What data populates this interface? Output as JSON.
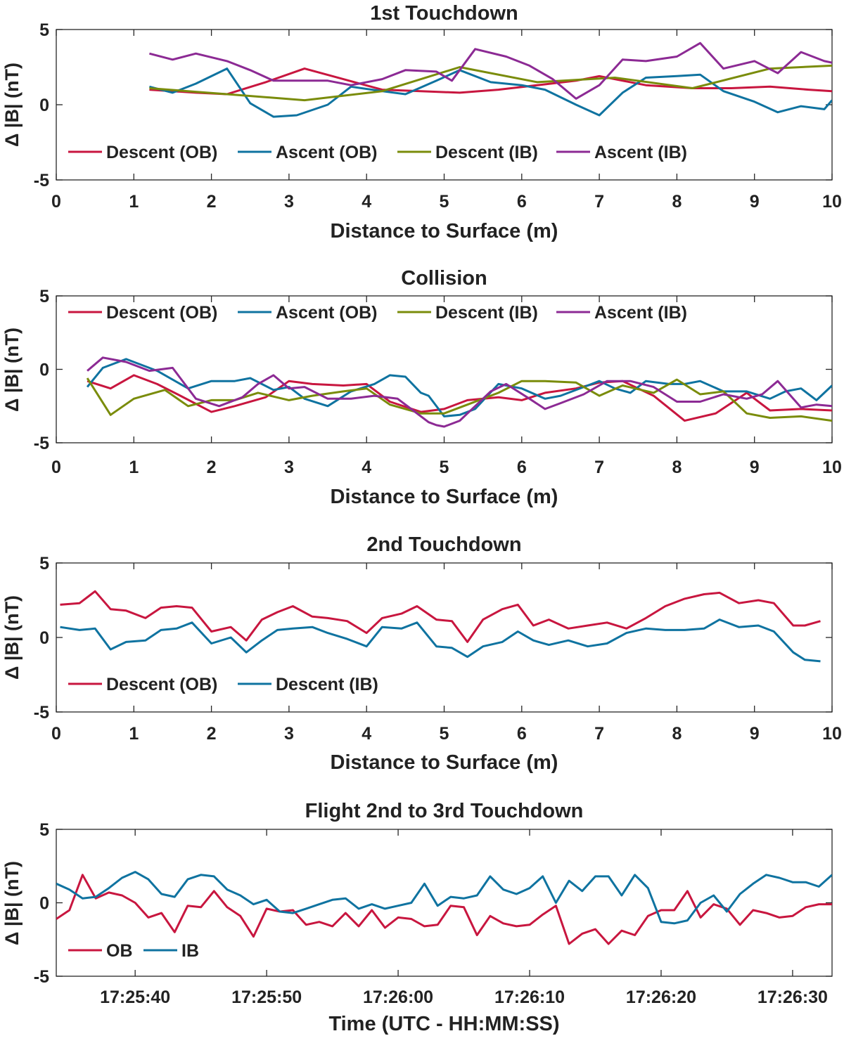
{
  "colors": {
    "red": "#c8163f",
    "blue": "#0f73a0",
    "olive": "#7a8c0b",
    "purple": "#8c2a94"
  },
  "chart_data": [
    {
      "type": "line",
      "title": "1st Touchdown",
      "xlabel": "Distance to Surface (m)",
      "ylabel": "Δ |B| (nT)",
      "xlim": [
        0,
        10
      ],
      "ylim": [
        -5,
        5
      ],
      "xticks": [
        0,
        1,
        2,
        3,
        4,
        5,
        6,
        7,
        8,
        9,
        10
      ],
      "yticks": [
        5,
        0,
        -5
      ],
      "legend_position": "bottom",
      "series": [
        {
          "name": "Descent (OB)",
          "color": "red",
          "x": [
            1.2,
            1.8,
            2.2,
            2.7,
            3.2,
            3.7,
            4.2,
            4.7,
            5.2,
            5.7,
            6.2,
            6.7,
            7.0,
            7.6,
            8.2,
            8.7,
            9.2,
            9.7,
            10
          ],
          "y": [
            1.0,
            0.8,
            0.7,
            1.5,
            2.4,
            1.7,
            1.0,
            0.9,
            0.8,
            1.0,
            1.3,
            1.6,
            1.9,
            1.3,
            1.1,
            1.1,
            1.2,
            1.0,
            0.9
          ]
        },
        {
          "name": "Ascent (OB)",
          "color": "blue",
          "x": [
            1.2,
            1.5,
            1.8,
            2.2,
            2.5,
            2.8,
            3.1,
            3.5,
            3.8,
            4.2,
            4.5,
            4.9,
            5.2,
            5.6,
            6.0,
            6.3,
            6.7,
            7.0,
            7.3,
            7.6,
            8.0,
            8.3,
            8.6,
            9.0,
            9.3,
            9.6,
            9.9,
            10
          ],
          "y": [
            1.2,
            0.8,
            1.4,
            2.4,
            0.1,
            -0.8,
            -0.7,
            0.0,
            1.2,
            0.9,
            0.7,
            1.6,
            2.3,
            1.5,
            1.3,
            1.0,
            0.0,
            -0.7,
            0.8,
            1.8,
            1.9,
            2.0,
            0.9,
            0.2,
            -0.5,
            -0.1,
            -0.3,
            0.3
          ]
        },
        {
          "name": "Descent (IB)",
          "color": "olive",
          "x": [
            1.2,
            2.2,
            3.2,
            4.2,
            5.2,
            6.2,
            7.2,
            8.2,
            9.2,
            10
          ],
          "y": [
            1.1,
            0.7,
            0.3,
            0.9,
            2.5,
            1.5,
            1.8,
            1.1,
            2.4,
            2.6
          ]
        },
        {
          "name": "Ascent (IB)",
          "color": "purple",
          "x": [
            1.2,
            1.5,
            1.8,
            2.2,
            2.5,
            2.8,
            3.1,
            3.5,
            3.8,
            4.2,
            4.5,
            4.9,
            5.1,
            5.4,
            5.8,
            6.1,
            6.4,
            6.7,
            7.0,
            7.3,
            7.6,
            8.0,
            8.3,
            8.6,
            9.0,
            9.3,
            9.6,
            9.9,
            10
          ],
          "y": [
            3.4,
            3.0,
            3.4,
            2.9,
            2.3,
            1.6,
            1.6,
            1.6,
            1.3,
            1.7,
            2.3,
            2.2,
            1.6,
            3.7,
            3.2,
            2.6,
            1.7,
            0.4,
            1.3,
            3.0,
            2.9,
            3.2,
            4.1,
            2.4,
            2.9,
            2.1,
            3.5,
            2.9,
            2.8
          ]
        }
      ]
    },
    {
      "type": "line",
      "title": "Collision",
      "xlabel": "Distance to Surface (m)",
      "ylabel": "Δ |B| (nT)",
      "xlim": [
        0,
        10
      ],
      "ylim": [
        -5,
        5
      ],
      "xticks": [
        0,
        1,
        2,
        3,
        4,
        5,
        6,
        7,
        8,
        9,
        10
      ],
      "yticks": [
        5,
        0,
        -5
      ],
      "legend_position": "top",
      "series": [
        {
          "name": "Descent (OB)",
          "color": "red",
          "x": [
            0.4,
            0.7,
            1.0,
            1.3,
            1.6,
            2.0,
            2.3,
            2.7,
            3.0,
            3.3,
            3.7,
            4.0,
            4.3,
            4.7,
            5.0,
            5.3,
            5.7,
            6.0,
            6.3,
            6.7,
            7.0,
            7.3,
            7.7,
            8.1,
            8.5,
            8.9,
            9.2,
            9.6,
            10
          ],
          "y": [
            -0.8,
            -1.3,
            -0.4,
            -1.0,
            -1.8,
            -2.9,
            -2.5,
            -1.9,
            -0.8,
            -1.0,
            -1.1,
            -1.0,
            -2.2,
            -2.9,
            -2.7,
            -2.1,
            -1.9,
            -2.1,
            -1.6,
            -1.3,
            -0.9,
            -0.8,
            -1.8,
            -3.5,
            -3.0,
            -1.6,
            -2.8,
            -2.7,
            -2.8
          ]
        },
        {
          "name": "Ascent (OB)",
          "color": "blue",
          "x": [
            0.4,
            0.6,
            0.9,
            1.3,
            1.7,
            2.0,
            2.3,
            2.5,
            2.8,
            3.0,
            3.2,
            3.5,
            3.8,
            4.1,
            4.3,
            4.5,
            4.7,
            4.8,
            5.0,
            5.2,
            5.4,
            5.7,
            6.0,
            6.3,
            6.5,
            6.8,
            7.0,
            7.2,
            7.4,
            7.6,
            7.9,
            8.1,
            8.3,
            8.6,
            8.9,
            9.2,
            9.4,
            9.6,
            9.8,
            10
          ],
          "y": [
            -1.2,
            0.1,
            0.7,
            -0.1,
            -1.3,
            -0.8,
            -0.8,
            -0.6,
            -1.4,
            -1.2,
            -2.0,
            -2.5,
            -1.5,
            -1.0,
            -0.4,
            -0.5,
            -1.6,
            -1.8,
            -3.2,
            -3.1,
            -2.7,
            -1.0,
            -1.3,
            -2.0,
            -1.8,
            -1.2,
            -0.8,
            -1.3,
            -1.6,
            -0.8,
            -1.0,
            -1.0,
            -0.8,
            -1.5,
            -1.5,
            -2.0,
            -1.5,
            -1.3,
            -2.1,
            -1.1
          ]
        },
        {
          "name": "Descent (IB)",
          "color": "olive",
          "x": [
            0.4,
            0.7,
            1.0,
            1.4,
            1.7,
            2.0,
            2.3,
            2.6,
            3.0,
            3.3,
            3.7,
            4.0,
            4.3,
            4.7,
            5.0,
            5.3,
            5.7,
            6.0,
            6.3,
            6.7,
            7.0,
            7.3,
            7.7,
            8.0,
            8.3,
            8.6,
            8.9,
            9.2,
            9.6,
            10
          ],
          "y": [
            -0.6,
            -3.1,
            -2.0,
            -1.4,
            -2.5,
            -2.1,
            -2.1,
            -1.6,
            -2.1,
            -1.8,
            -1.5,
            -1.3,
            -2.4,
            -3.0,
            -3.0,
            -2.4,
            -1.6,
            -0.8,
            -0.8,
            -0.9,
            -1.8,
            -1.1,
            -1.6,
            -0.7,
            -1.7,
            -1.5,
            -3.0,
            -3.3,
            -3.2,
            -3.5
          ]
        },
        {
          "name": "Ascent (IB)",
          "color": "purple",
          "x": [
            0.4,
            0.6,
            0.9,
            1.2,
            1.5,
            1.8,
            2.1,
            2.4,
            2.6,
            2.8,
            3.0,
            3.2,
            3.5,
            3.8,
            4.1,
            4.4,
            4.6,
            4.8,
            4.9,
            5.0,
            5.2,
            5.4,
            5.6,
            5.8,
            6.1,
            6.3,
            6.5,
            6.8,
            7.1,
            7.4,
            7.7,
            8.0,
            8.3,
            8.6,
            8.9,
            9.1,
            9.3,
            9.6,
            9.8,
            10
          ],
          "y": [
            -0.1,
            0.8,
            0.5,
            -0.1,
            0.1,
            -2.0,
            -2.5,
            -1.9,
            -1.0,
            -0.4,
            -1.3,
            -1.2,
            -2.0,
            -2.0,
            -1.8,
            -2.0,
            -2.8,
            -3.6,
            -3.8,
            -3.9,
            -3.5,
            -2.5,
            -1.5,
            -1.0,
            -2.0,
            -2.7,
            -2.3,
            -1.7,
            -0.8,
            -0.8,
            -1.2,
            -2.2,
            -2.2,
            -1.7,
            -2.0,
            -1.7,
            -0.8,
            -2.6,
            -2.4,
            -2.5
          ]
        }
      ]
    },
    {
      "type": "line",
      "title": "2nd Touchdown",
      "xlabel": "Distance to Surface (m)",
      "ylabel": "Δ |B| (nT)",
      "xlim": [
        0,
        10
      ],
      "ylim": [
        -5,
        5
      ],
      "xticks": [
        0,
        1,
        2,
        3,
        4,
        5,
        6,
        7,
        8,
        9,
        10
      ],
      "yticks": [
        5,
        0,
        -5
      ],
      "legend_position": "bottom",
      "series": [
        {
          "name": "Descent (OB)",
          "color": "red",
          "x": [
            0.05,
            0.3,
            0.5,
            0.7,
            0.9,
            1.15,
            1.35,
            1.55,
            1.75,
            2.0,
            2.25,
            2.45,
            2.65,
            2.85,
            3.05,
            3.3,
            3.5,
            3.75,
            4.0,
            4.2,
            4.45,
            4.65,
            4.9,
            5.1,
            5.3,
            5.5,
            5.75,
            5.95,
            6.15,
            6.35,
            6.6,
            6.85,
            7.1,
            7.35,
            7.6,
            7.85,
            8.1,
            8.35,
            8.55,
            8.8,
            9.05,
            9.25,
            9.5,
            9.65,
            9.85
          ],
          "y": [
            2.2,
            2.3,
            3.1,
            1.9,
            1.8,
            1.3,
            2.0,
            2.1,
            2.0,
            0.4,
            0.7,
            -0.2,
            1.2,
            1.7,
            2.1,
            1.4,
            1.3,
            1.1,
            0.3,
            1.3,
            1.6,
            2.1,
            1.2,
            1.1,
            -0.3,
            1.2,
            1.9,
            2.2,
            0.8,
            1.2,
            0.6,
            0.8,
            1.0,
            0.6,
            1.3,
            2.1,
            2.6,
            2.9,
            3.0,
            2.3,
            2.5,
            2.3,
            0.8,
            0.8,
            1.1
          ]
        },
        {
          "name": "Descent (IB)",
          "color": "blue",
          "x": [
            0.05,
            0.3,
            0.5,
            0.7,
            0.9,
            1.15,
            1.35,
            1.55,
            1.75,
            2.0,
            2.25,
            2.45,
            2.65,
            2.85,
            3.05,
            3.3,
            3.5,
            3.75,
            4.0,
            4.2,
            4.45,
            4.65,
            4.9,
            5.1,
            5.3,
            5.5,
            5.75,
            5.95,
            6.15,
            6.35,
            6.6,
            6.85,
            7.1,
            7.35,
            7.6,
            7.85,
            8.1,
            8.35,
            8.55,
            8.8,
            9.05,
            9.25,
            9.5,
            9.65,
            9.85
          ],
          "y": [
            0.7,
            0.5,
            0.6,
            -0.8,
            -0.3,
            -0.2,
            0.5,
            0.6,
            1.0,
            -0.4,
            0.0,
            -1.0,
            -0.2,
            0.5,
            0.6,
            0.7,
            0.3,
            -0.1,
            -0.6,
            0.7,
            0.6,
            1.0,
            -0.6,
            -0.7,
            -1.3,
            -0.6,
            -0.3,
            0.4,
            -0.2,
            -0.5,
            -0.2,
            -0.6,
            -0.4,
            0.3,
            0.6,
            0.5,
            0.5,
            0.6,
            1.2,
            0.7,
            0.8,
            0.4,
            -1.0,
            -1.5,
            -1.6
          ]
        }
      ]
    },
    {
      "type": "line",
      "title": "Flight 2nd to 3rd Touchdown",
      "xlabel": "Time (UTC - HH:MM:SS)",
      "ylabel": "Δ |B| (nT)",
      "x_units": "seconds after 17:25:00",
      "xlim": [
        34,
        93
      ],
      "ylim": [
        -5,
        5
      ],
      "xticks": [
        40,
        50,
        60,
        70,
        80,
        90
      ],
      "xtick_labels": [
        "17:25:40",
        "17:25:50",
        "17:26:00",
        "17:26:10",
        "17:26:20",
        "17:26:30"
      ],
      "yticks": [
        5,
        0,
        -5
      ],
      "legend_position": "bottom",
      "series": [
        {
          "name": "OB",
          "color": "red",
          "x": [
            34,
            35,
            36,
            37,
            38,
            39,
            40,
            41,
            42,
            43,
            44,
            45,
            46,
            47,
            48,
            49,
            50,
            51,
            52,
            53,
            54,
            55,
            56,
            57,
            58,
            59,
            60,
            61,
            62,
            63,
            64,
            65,
            66,
            67,
            68,
            69,
            70,
            71,
            72,
            73,
            74,
            75,
            76,
            77,
            78,
            79,
            80,
            81,
            82,
            83,
            84,
            85,
            86,
            87,
            88,
            89,
            90,
            91,
            92,
            93
          ],
          "y": [
            -1.1,
            -0.5,
            1.9,
            0.3,
            0.7,
            0.5,
            0.0,
            -1.0,
            -0.7,
            -2.0,
            -0.2,
            -0.3,
            0.8,
            -0.3,
            -0.9,
            -2.3,
            -0.4,
            -0.6,
            -0.5,
            -1.5,
            -1.3,
            -1.6,
            -0.7,
            -1.6,
            -0.5,
            -1.7,
            -1.0,
            -1.1,
            -1.6,
            -1.5,
            -0.2,
            -0.3,
            -2.2,
            -0.9,
            -1.4,
            -1.6,
            -1.5,
            -0.8,
            -0.2,
            -2.8,
            -2.1,
            -1.8,
            -2.8,
            -1.9,
            -2.2,
            -0.9,
            -0.5,
            -0.5,
            0.8,
            -1.0,
            -0.1,
            -0.4,
            -1.5,
            -0.5,
            -0.7,
            -1.0,
            -0.9,
            -0.3,
            -0.1,
            -0.1
          ]
        },
        {
          "name": "IB",
          "color": "blue",
          "x": [
            34,
            35,
            36,
            37,
            38,
            39,
            40,
            41,
            42,
            43,
            44,
            45,
            46,
            47,
            48,
            49,
            50,
            51,
            52,
            53,
            54,
            55,
            56,
            57,
            58,
            59,
            60,
            61,
            62,
            63,
            64,
            65,
            66,
            67,
            68,
            69,
            70,
            71,
            72,
            73,
            74,
            75,
            76,
            77,
            78,
            79,
            80,
            81,
            82,
            83,
            84,
            85,
            86,
            87,
            88,
            89,
            90,
            91,
            92,
            93
          ],
          "y": [
            1.3,
            0.9,
            0.3,
            0.4,
            1.0,
            1.7,
            2.1,
            1.6,
            0.6,
            0.4,
            1.6,
            1.9,
            1.8,
            0.9,
            0.5,
            -0.1,
            0.2,
            -0.6,
            -0.7,
            -0.4,
            -0.1,
            0.2,
            0.3,
            -0.4,
            -0.1,
            -0.4,
            -0.2,
            0.0,
            1.3,
            -0.2,
            0.4,
            0.3,
            0.5,
            1.8,
            0.9,
            0.6,
            1.0,
            1.8,
            0.0,
            1.5,
            0.8,
            1.8,
            1.8,
            0.5,
            1.9,
            1.0,
            -1.3,
            -1.4,
            -1.2,
            0.0,
            0.5,
            -0.6,
            0.6,
            1.3,
            1.9,
            1.7,
            1.4,
            1.4,
            1.1,
            1.9
          ]
        }
      ]
    }
  ]
}
